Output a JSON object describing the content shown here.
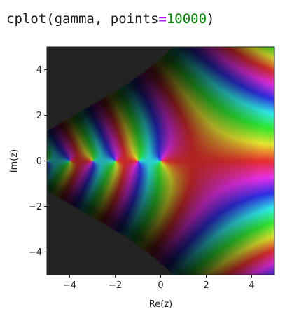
{
  "code_cell": {
    "func": "cplot",
    "open_paren": "(",
    "arg_name": "gamma",
    "sep": ", ",
    "kw_name": "points",
    "kw_op": "=",
    "kw_value": "10000",
    "close_paren": ")"
  },
  "chart_data": {
    "type": "heatmap",
    "description_function": "gamma",
    "xlabel": "Re(z)",
    "ylabel": "Im(z)",
    "xlim": [
      -5,
      5
    ],
    "ylim": [
      -5,
      5
    ],
    "x_ticks": [
      -4,
      -2,
      0,
      2,
      4
    ],
    "y_ticks": [
      -4,
      -2,
      0,
      2,
      4
    ],
    "x_tick_labels": [
      "−4",
      "−2",
      "0",
      "2",
      "4"
    ],
    "y_tick_labels": [
      "−4",
      "−2",
      "0",
      "2",
      "4"
    ],
    "colormap": "phase-hue",
    "grid": false,
    "dark_region_color": "#232323"
  }
}
